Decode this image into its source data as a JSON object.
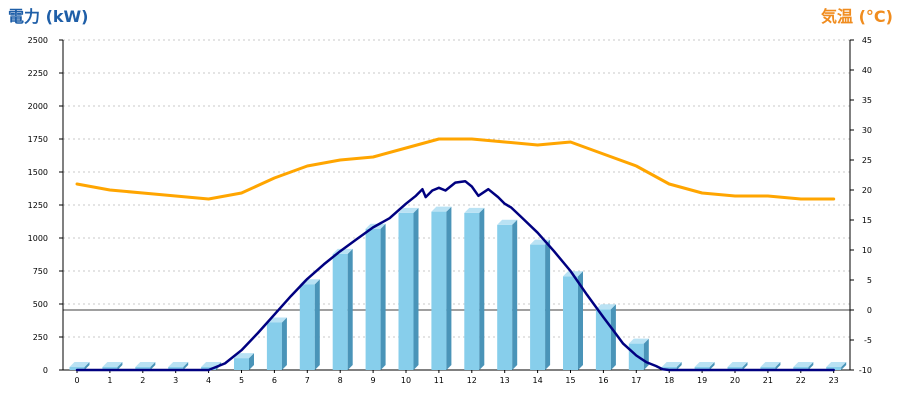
{
  "chart_data": {
    "type": "bar",
    "left_axis_title": "電力 (kW)",
    "right_axis_title": "気温 (°C)",
    "title_colors": {
      "left": "#1f5fa8",
      "right": "#f08c1e"
    },
    "x": [
      0,
      1,
      2,
      3,
      4,
      5,
      6,
      7,
      8,
      9,
      10,
      11,
      12,
      13,
      14,
      15,
      16,
      17,
      18,
      19,
      20,
      21,
      22,
      23
    ],
    "left_ylim": [
      0,
      2500
    ],
    "left_ticks": [
      0,
      250,
      500,
      750,
      1000,
      1250,
      1500,
      1750,
      2000,
      2250,
      2500
    ],
    "right_ylim": [
      -10,
      45
    ],
    "right_ticks": [
      -10,
      -5,
      0,
      5,
      10,
      15,
      20,
      25,
      30,
      35,
      40,
      45
    ],
    "grid": true,
    "series": [
      {
        "kind": "bar",
        "axis": "left",
        "color": "#87ceeb",
        "values": [
          0,
          0,
          0,
          0,
          0,
          90,
          360,
          650,
          880,
          1070,
          1190,
          1200,
          1190,
          1100,
          950,
          710,
          460,
          200,
          0,
          0,
          0,
          0,
          0,
          0
        ]
      },
      {
        "kind": "line",
        "axis": "left",
        "color": "#000080",
        "x": [
          0,
          1,
          2,
          3,
          4,
          4.5,
          5,
          5.5,
          6,
          6.5,
          7,
          7.5,
          8,
          8.5,
          9,
          9.5,
          10,
          10.3,
          10.5,
          10.6,
          10.8,
          11,
          11.2,
          11.5,
          11.8,
          12,
          12.2,
          12.5,
          12.8,
          13,
          13.2,
          13.5,
          14,
          14.5,
          15,
          15.5,
          16,
          16.3,
          16.6,
          17,
          17.3,
          17.6,
          17.8,
          18,
          19,
          20,
          21,
          22,
          23
        ],
        "values": [
          0,
          0,
          0,
          0,
          0,
          50,
          150,
          280,
          420,
          560,
          690,
          800,
          900,
          990,
          1080,
          1150,
          1260,
          1320,
          1370,
          1310,
          1360,
          1380,
          1360,
          1420,
          1430,
          1390,
          1320,
          1370,
          1310,
          1260,
          1230,
          1160,
          1040,
          900,
          750,
          570,
          400,
          300,
          200,
          110,
          60,
          30,
          5,
          0,
          0,
          0,
          0,
          0,
          0
        ]
      },
      {
        "kind": "line",
        "axis": "right",
        "color": "#ffa500",
        "values": [
          21,
          20,
          19.5,
          19,
          18.5,
          19.5,
          22,
          24,
          25,
          25.5,
          27,
          28.5,
          28.5,
          28,
          27.5,
          28,
          26,
          24,
          21,
          19.5,
          19,
          19,
          18.5,
          18.5
        ]
      }
    ]
  }
}
